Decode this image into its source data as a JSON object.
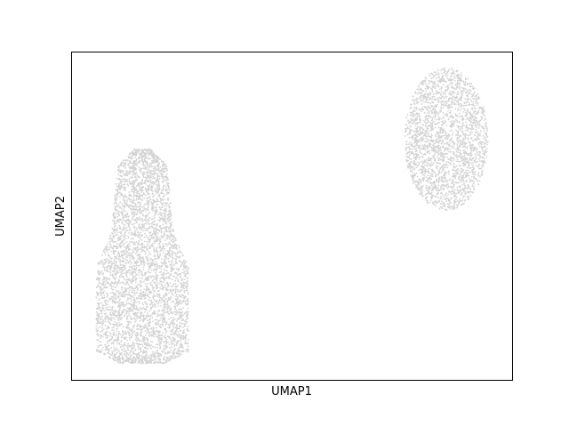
{
  "chart_data": {
    "type": "scatter",
    "title": "",
    "xlabel": "UMAP1",
    "ylabel": "UMAP2",
    "xticks": [],
    "yticks": [],
    "xlim": [
      0,
      10
    ],
    "ylim": [
      0,
      10
    ],
    "grid": false,
    "legend": "none",
    "point_color": "#d3d3d3",
    "clusters": [
      {
        "center": [
          1.6,
          2.95
        ],
        "x_extent": [
          0.45,
          2.7
        ],
        "y_extent": [
          0.5,
          7.05
        ],
        "shape": "teardrop, narrower at top",
        "approx_points": 4500
      },
      {
        "center": [
          8.5,
          7.35
        ],
        "x_extent": [
          7.6,
          9.5
        ],
        "y_extent": [
          5.3,
          9.65
        ],
        "shape": "ellipse",
        "approx_points": 2500
      }
    ]
  }
}
